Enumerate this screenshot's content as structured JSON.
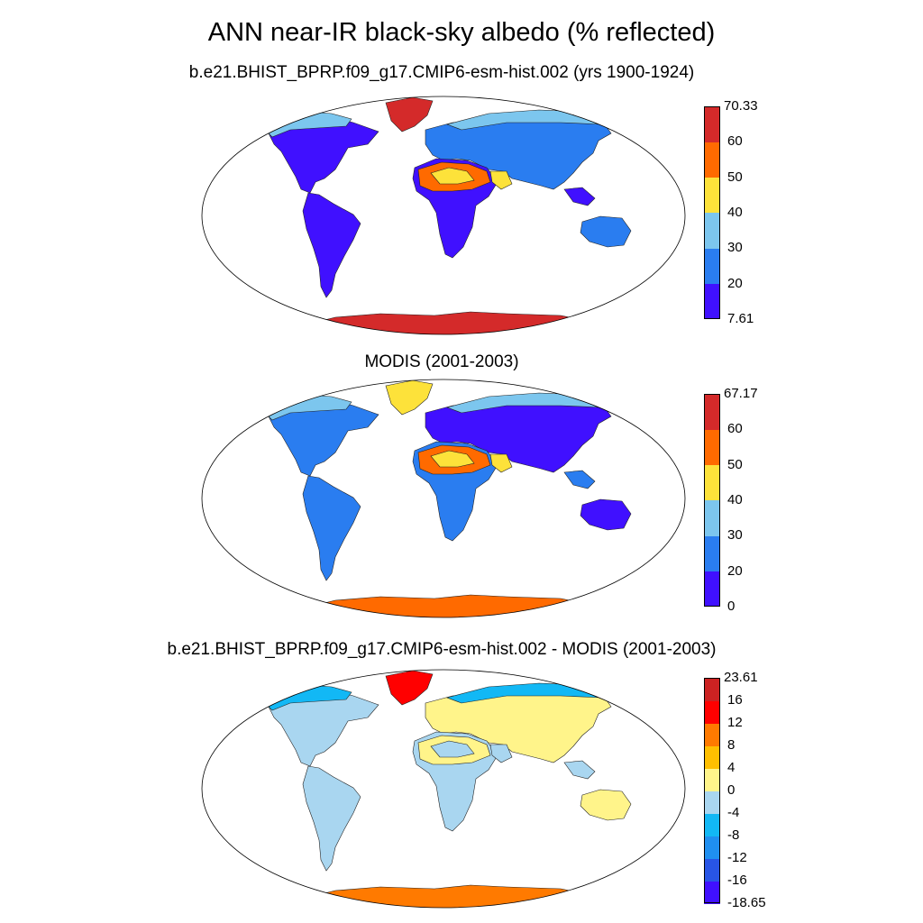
{
  "figure": {
    "title": "ANN near-IR black-sky albedo (% reflected)"
  },
  "panels": [
    {
      "title": "b.e21.BHIST_BPRP.f09_g17.CMIP6-esm-hist.002 (yrs 1900-1924)",
      "colorbar": {
        "colors": [
          "#4010ff",
          "#2a7df0",
          "#7cc6ee",
          "#fde23a",
          "#ff6a00",
          "#d42a2a"
        ],
        "labels": [
          "70.33",
          "60",
          "50",
          "40",
          "30",
          "20",
          "7.61"
        ]
      },
      "theme": {
        "land": "#4010ff",
        "land2": "#2a7df0",
        "north": "#7cc6ee",
        "desert": "#ff6a00",
        "desert2": "#fde23a",
        "greenland": "#d42a2a",
        "antarctica": "#d42a2a"
      }
    },
    {
      "title": "MODIS (2001-2003)",
      "colorbar": {
        "colors": [
          "#4010ff",
          "#2a7df0",
          "#7cc6ee",
          "#fde23a",
          "#ff6a00",
          "#d42a2a"
        ],
        "labels": [
          "67.17",
          "60",
          "50",
          "40",
          "30",
          "20",
          "0"
        ]
      },
      "theme": {
        "land": "#2a7df0",
        "land2": "#4010ff",
        "north": "#7cc6ee",
        "desert": "#ff6a00",
        "desert2": "#fde23a",
        "greenland": "#fde23a",
        "antarctica": "#ff6a00"
      }
    },
    {
      "title": "b.e21.BHIST_BPRP.f09_g17.CMIP6-esm-hist.002 - MODIS (2001-2003)",
      "colorbar": {
        "colors": [
          "#4010ff",
          "#2855e6",
          "#1f8ff0",
          "#12b8f5",
          "#a9d6f0",
          "#fff48a",
          "#ffbf00",
          "#ff7a00",
          "#ff0000",
          "#cc2222"
        ],
        "labels": [
          "23.61",
          "16",
          "12",
          "8",
          "4",
          "0",
          "-4",
          "-8",
          "-12",
          "-16",
          "-18.65"
        ]
      },
      "theme": {
        "land": "#a9d6f0",
        "land2": "#fff48a",
        "north": "#12b8f5",
        "desert": "#fff48a",
        "desert2": "#a9d6f0",
        "greenland": "#ff0000",
        "antarctica": "#ff7a00"
      }
    }
  ]
}
